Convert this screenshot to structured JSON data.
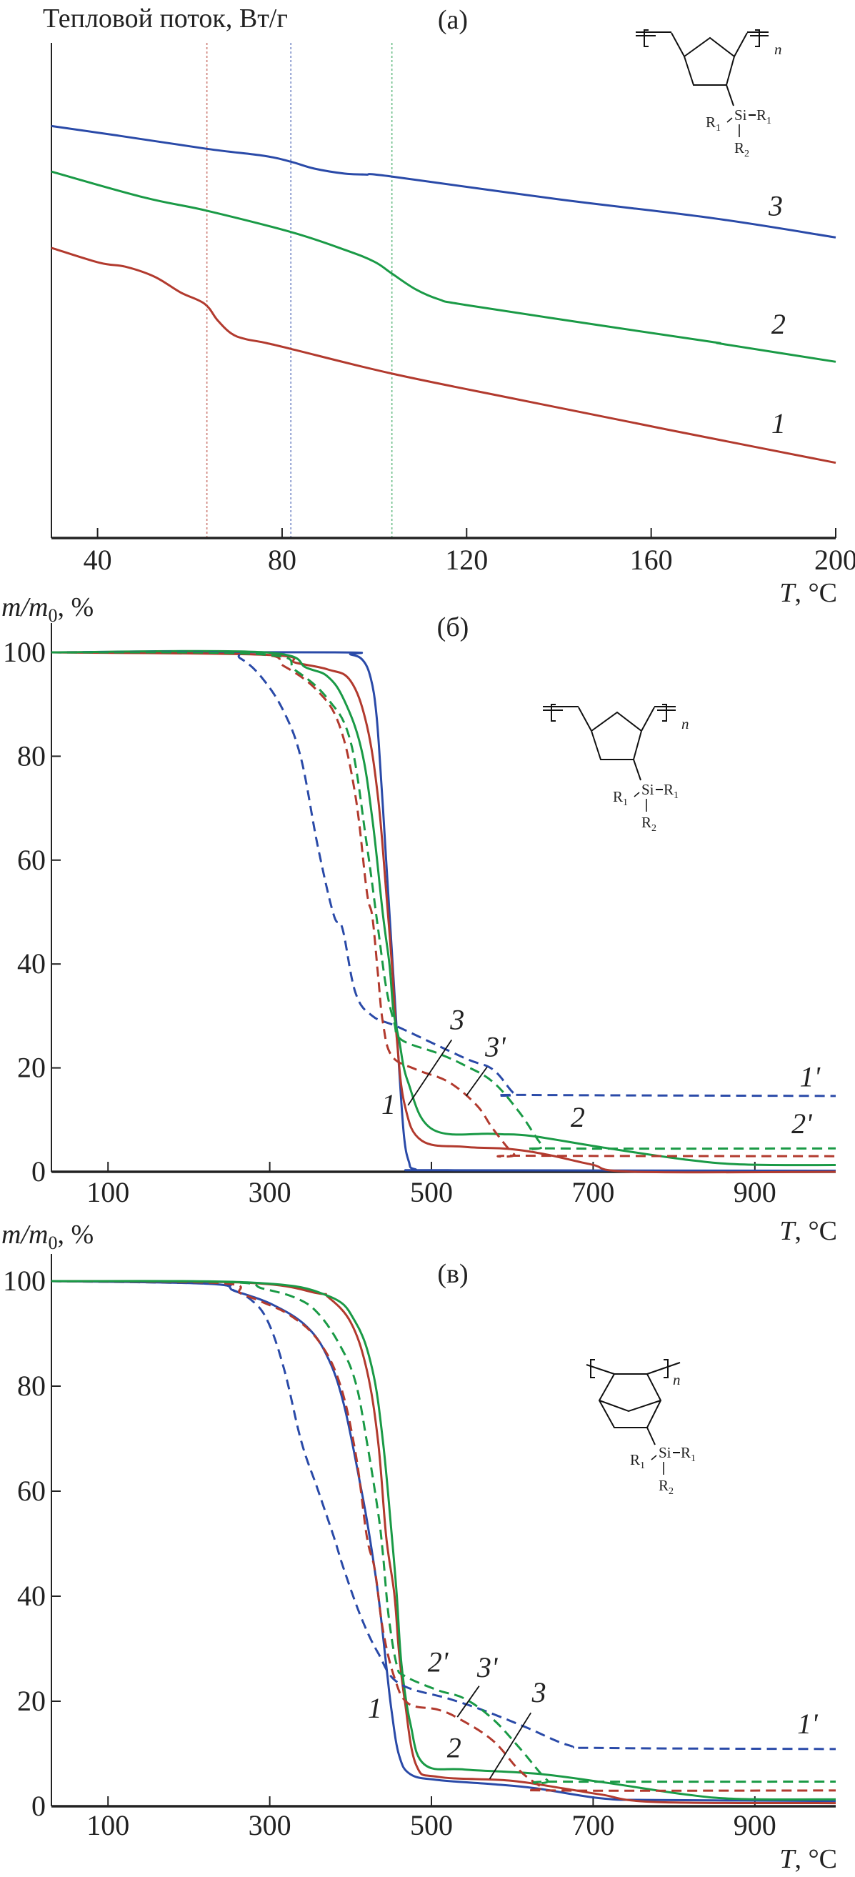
{
  "colors": {
    "red": "#b23a2e",
    "green": "#1a9a46",
    "blue": "#2a4aa8",
    "axis": "#222222"
  },
  "molecules": {
    "cyclopentane": {
      "si": "Si",
      "r1": "R",
      "r1_sub": "1",
      "r2": "R",
      "r2_sub": "2",
      "n": "n"
    },
    "norbornane": {
      "si": "Si",
      "r1": "R",
      "r1_sub": "1",
      "r2": "R",
      "r2_sub": "2",
      "n": "n"
    }
  },
  "chart_data": [
    {
      "type": "line",
      "panel_label": "(a)",
      "ylabel": "Тепловой поток, Вт/г",
      "xlabel": "T, °C",
      "xlabel_italic": "T",
      "xlabel_unit": ", °C",
      "xlim": [
        30,
        200
      ],
      "ylim": [
        0,
        100
      ],
      "y_ticks_shown": false,
      "xticks": [
        40,
        80,
        120,
        160,
        200
      ],
      "grid": false,
      "vlines": [
        {
          "x": 63.7,
          "color": "red"
        },
        {
          "x": 81.9,
          "color": "blue"
        },
        {
          "x": 103.8,
          "color": "green"
        }
      ],
      "series": [
        {
          "name": "3",
          "color": "blue",
          "dash": false,
          "x": [
            30,
            45,
            63.7,
            76,
            81.9,
            87,
            93.6,
            98,
            103.8,
            140,
            173.3,
            200
          ],
          "y": [
            83.2,
            81.2,
            78.6,
            77.2,
            76.0,
            74.6,
            73.6,
            73.4,
            73.0,
            68.4,
            64.6,
            60.7
          ]
        },
        {
          "name": "2",
          "color": "green",
          "dash": false,
          "x": [
            30,
            50,
            63.7,
            81.9,
            93.6,
            100,
            103.8,
            109,
            114,
            119.6,
            150,
            173.3,
            176,
            200
          ],
          "y": [
            74.0,
            68.8,
            66.1,
            61.8,
            58.2,
            55.8,
            53.4,
            50.2,
            48.2,
            47.1,
            42.8,
            39.6,
            39.1,
            35.6
          ]
        },
        {
          "name": "1",
          "color": "red",
          "dash": false,
          "x": [
            30,
            40.4,
            46,
            52.3,
            58,
            63.2,
            66,
            69,
            72,
            76,
            81.9,
            103.8,
            130,
            157.7,
            170,
            200
          ],
          "y": [
            58.6,
            55.6,
            54.8,
            52.8,
            49.6,
            47.3,
            44.0,
            41.3,
            40.2,
            39.5,
            38.2,
            33.2,
            28.2,
            23.0,
            20.7,
            15.2
          ]
        }
      ],
      "annotations": [
        {
          "text": "3",
          "x": 187,
          "y": 66.5
        },
        {
          "text": "2",
          "x": 187.6,
          "y": 42.6
        },
        {
          "text": "1",
          "x": 187.6,
          "y": 22.5
        }
      ]
    },
    {
      "type": "line",
      "panel_label": "(б)",
      "ylabel": "m/m0, %",
      "ylabel_main": "m/m",
      "ylabel_sub": "0",
      "ylabel_unit": ", %",
      "xlabel": "T, °C",
      "xlabel_italic": "T",
      "xlabel_unit": ", °C",
      "xlim": [
        30,
        1000
      ],
      "ylim": [
        0,
        100
      ],
      "xticks": [
        100,
        300,
        500,
        700,
        900
      ],
      "yticks": [
        0,
        20,
        40,
        60,
        80,
        100
      ],
      "grid": false,
      "series": [
        {
          "name": "blue solid",
          "color": "blue",
          "dash": false,
          "x": [
            30,
            380,
            400,
            415,
            425,
            432,
            438,
            444,
            452,
            460,
            466,
            472,
            480,
            520,
            1000
          ],
          "y": [
            100,
            100,
            99.6,
            98.5,
            95,
            88,
            75,
            60,
            40,
            20,
            7,
            2,
            0.5,
            0.3,
            0.2
          ]
        },
        {
          "name": "red solid",
          "color": "red",
          "dash": false,
          "x": [
            30,
            298,
            332,
            372,
            400,
            420,
            434,
            444,
            451,
            457,
            467,
            488,
            541,
            596,
            643,
            698,
            751,
            1000
          ],
          "y": [
            100,
            99.5,
            98,
            96.7,
            94.5,
            86,
            72,
            54,
            40,
            26,
            12.8,
            6,
            4.8,
            4.4,
            3.3,
            1.4,
            0,
            0
          ]
        },
        {
          "name": "green solid",
          "color": "green",
          "dash": false,
          "x": [
            30,
            293,
            346,
            372,
            392,
            413,
            427,
            440,
            448,
            453,
            460,
            471,
            501,
            576,
            623,
            711,
            812,
            887,
            1000
          ],
          "y": [
            100,
            100,
            97,
            95.3,
            90.8,
            81.6,
            67.8,
            49.5,
            40,
            31,
            25.4,
            17.3,
            8.2,
            7.3,
            6.9,
            4.7,
            2.4,
            1.4,
            1.3
          ]
        },
        {
          "name": "blue dashed",
          "color": "blue",
          "dash": true,
          "x": [
            30,
            237,
            264,
            291,
            318,
            339,
            359,
            379,
            390,
            406,
            427,
            460,
            541,
            576,
            602,
            616,
            1000
          ],
          "y": [
            100,
            100,
            98.8,
            95,
            88.4,
            79.4,
            63,
            49.5,
            46.8,
            34.5,
            30,
            27.8,
            21.9,
            19.7,
            15.1,
            14.8,
            14.6
          ]
        },
        {
          "name": "red dashed",
          "color": "red",
          "dash": true,
          "x": [
            30,
            278,
            318,
            359,
            386,
            406,
            420,
            427,
            434,
            440,
            451,
            481,
            521,
            556,
            576,
            602,
            616,
            1000
          ],
          "y": [
            100,
            99.7,
            97.3,
            92.6,
            86,
            72.4,
            54,
            49,
            37.8,
            28.7,
            22.3,
            19.7,
            17.3,
            12.8,
            8.3,
            3.4,
            3.1,
            3.0
          ]
        },
        {
          "name": "green dashed",
          "color": "green",
          "dash": true,
          "x": [
            30,
            291,
            332,
            372,
            400,
            420,
            434,
            444,
            454,
            463,
            508,
            541,
            576,
            609,
            637,
            650,
            1000
          ],
          "y": [
            100,
            99.6,
            96.5,
            91,
            82.8,
            63,
            46.8,
            35.5,
            28.7,
            25.4,
            22.8,
            20.5,
            17.3,
            11.4,
            5.1,
            4.5,
            4.5
          ]
        }
      ],
      "annotations": [
        {
          "text": "3",
          "x": 532,
          "y": 28.7,
          "line": [
            525,
            25.4,
            471,
            12.8
          ]
        },
        {
          "text": "3'",
          "x": 579,
          "y": 23.5,
          "line": [
            569,
            20.2,
            543,
            14.6
          ]
        },
        {
          "text": "1",
          "x": 447,
          "y": 12.4
        },
        {
          "text": "1'",
          "x": 968,
          "y": 17.7
        },
        {
          "text": "2",
          "x": 681,
          "y": 9.9
        },
        {
          "text": "2'",
          "x": 958,
          "y": 8.7
        }
      ]
    },
    {
      "type": "line",
      "panel_label": "(в)",
      "ylabel": "m/m0, %",
      "ylabel_main": "m/m",
      "ylabel_sub": "0",
      "ylabel_unit": ", %",
      "xlabel": "T, °C",
      "xlabel_italic": "T",
      "xlabel_unit": ", °C",
      "xlim": [
        30,
        1000
      ],
      "ylim": [
        0,
        100
      ],
      "xticks": [
        100,
        300,
        500,
        700,
        900
      ],
      "yticks": [
        0,
        20,
        40,
        60,
        80,
        100
      ],
      "grid": false,
      "series": [
        {
          "name": "blue solid",
          "color": "blue",
          "dash": false,
          "x": [
            30,
            224,
            257,
            305,
            346,
            372,
            392,
            413,
            423,
            434,
            444,
            451,
            460,
            474,
            508,
            576,
            630,
            711,
            779,
            1000
          ],
          "y": [
            100,
            99.5,
            98.1,
            95.4,
            91.3,
            85.4,
            76.3,
            60.5,
            51.8,
            40.5,
            27,
            17.8,
            9.7,
            6.1,
            5,
            4.2,
            3.4,
            1.5,
            1.2,
            1.0
          ]
        },
        {
          "name": "red solid",
          "color": "red",
          "dash": false,
          "x": [
            30,
            271,
            359,
            372,
            400,
            420,
            434,
            444,
            454,
            460,
            467,
            481,
            508,
            596,
            663,
            711,
            779,
            1000
          ],
          "y": [
            100,
            99.7,
            97.7,
            97,
            92.2,
            83.1,
            69.5,
            51.4,
            40.5,
            29.2,
            20.1,
            7.9,
            5.6,
            4.9,
            3.4,
            2.2,
            0.8,
            0.6
          ]
        },
        {
          "name": "green solid",
          "color": "green",
          "dash": false,
          "x": [
            30,
            280,
            372,
            406,
            427,
            440,
            451,
            457,
            463,
            474,
            491,
            541,
            630,
            711,
            812,
            880,
            1000
          ],
          "y": [
            100,
            99.7,
            97.2,
            92.2,
            83.1,
            69.5,
            51.4,
            40.5,
            27,
            15.7,
            8,
            7.0,
            6.2,
            4.6,
            2.3,
            1.4,
            1.3
          ]
        },
        {
          "name": "blue dashed",
          "color": "blue",
          "dash": true,
          "x": [
            30,
            230,
            250,
            278,
            298,
            318,
            339,
            359,
            379,
            392,
            413,
            434,
            460,
            521,
            562,
            616,
            670,
            711,
            1000
          ],
          "y": [
            100,
            99.5,
            98.6,
            96.3,
            92.2,
            83.1,
            69.5,
            60.5,
            51.4,
            45,
            36,
            29.2,
            23.4,
            20.5,
            18.4,
            15.1,
            11.6,
            11.1,
            10.9
          ]
        },
        {
          "name": "red dashed",
          "color": "red",
          "dash": true,
          "x": [
            30,
            240,
            264,
            291,
            325,
            359,
            386,
            406,
            420,
            430,
            440,
            454,
            471,
            508,
            535,
            576,
            609,
            637,
            650,
            1000
          ],
          "y": [
            100,
            99.6,
            97.7,
            96,
            93.5,
            88.9,
            80.8,
            67.4,
            51.4,
            45,
            33.6,
            24.6,
            19.6,
            18.4,
            16.6,
            12.5,
            6.8,
            3.6,
            3.0,
            3.0
          ]
        },
        {
          "name": "green dashed",
          "color": "green",
          "dash": true,
          "x": [
            30,
            250,
            291,
            332,
            359,
            386,
            406,
            420,
            434,
            440,
            447,
            457,
            467,
            508,
            541,
            576,
            609,
            643,
            657,
            1000
          ],
          "y": [
            100,
            99.8,
            98.6,
            96.8,
            94,
            88,
            80.8,
            69.5,
            56,
            48,
            36.3,
            27,
            24.8,
            22.1,
            20.5,
            16.6,
            11.1,
            5,
            4.7,
            4.7
          ]
        }
      ],
      "annotations": [
        {
          "text": "2'",
          "x": 508,
          "y": 26.9
        },
        {
          "text": "3'",
          "x": 569,
          "y": 25.9,
          "line": [
            559,
            22.9,
            532,
            17
          ]
        },
        {
          "text": "3",
          "x": 633,
          "y": 21.1,
          "line": [
            623,
            17.8,
            572,
            5.2
          ]
        },
        {
          "text": "1",
          "x": 430,
          "y": 18.1
        },
        {
          "text": "2",
          "x": 528,
          "y": 10.6
        },
        {
          "text": "1'",
          "x": 965,
          "y": 15.1
        }
      ]
    }
  ]
}
